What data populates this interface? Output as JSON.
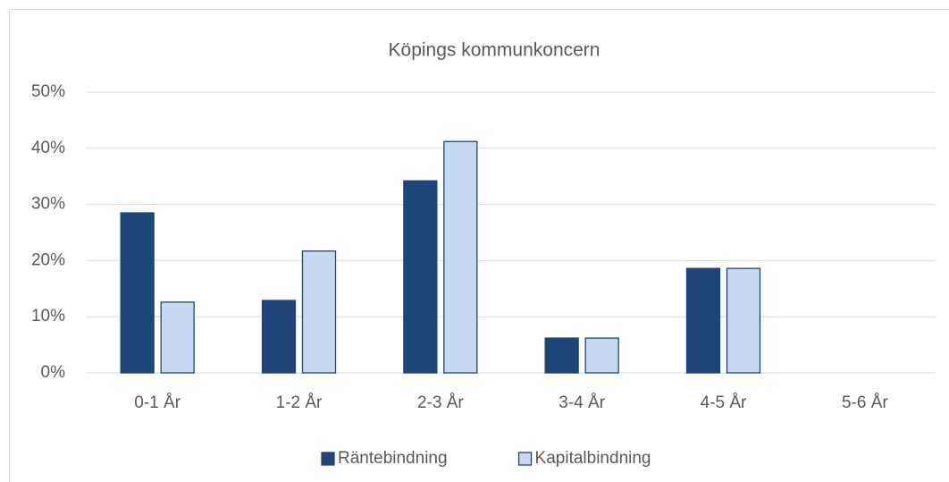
{
  "chart_data": {
    "type": "bar",
    "title": "Köpings kommunkoncern",
    "categories": [
      "0-1 År",
      "1-2 År",
      "2-3 År",
      "3-4 År",
      "4-5 År",
      "5-6 År"
    ],
    "series": [
      {
        "name": "Räntebindning",
        "color": "#1f4478",
        "values": [
          28.5,
          12.9,
          34.2,
          6.2,
          18.6,
          0
        ]
      },
      {
        "name": "Kapitalbindning",
        "color": "#c6d9f1",
        "values": [
          12.6,
          21.7,
          41.2,
          6.2,
          18.6,
          0
        ]
      }
    ],
    "ylim": [
      0,
      50
    ],
    "yticks": [
      {
        "value": 0,
        "label": "0%"
      },
      {
        "value": 10,
        "label": "10%"
      },
      {
        "value": 20,
        "label": "20%"
      },
      {
        "value": 30,
        "label": "30%"
      },
      {
        "value": 40,
        "label": "40%"
      },
      {
        "value": 50,
        "label": "50%"
      }
    ],
    "grid": true,
    "legend": "bottom"
  }
}
